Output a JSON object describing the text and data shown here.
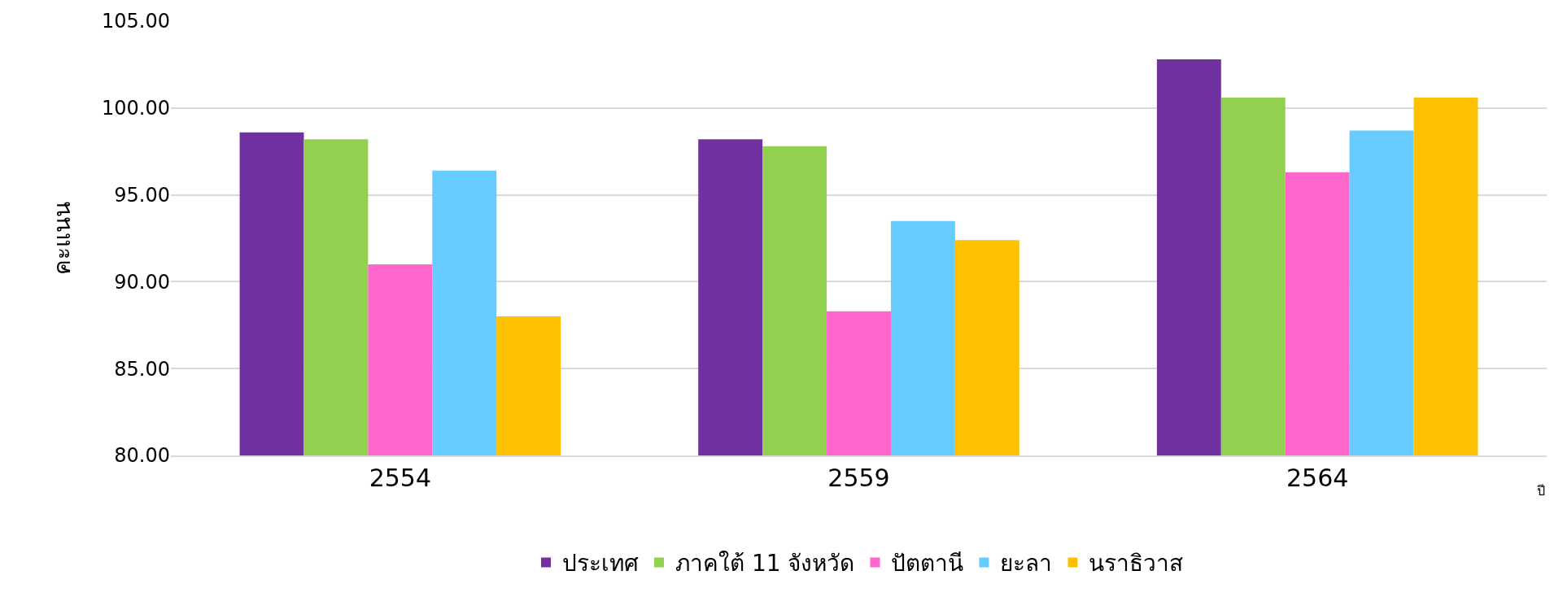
{
  "chart_data": {
    "type": "bar",
    "categories": [
      "2554",
      "2559",
      "2564"
    ],
    "xlabel": "ปี",
    "ylabel": "คะแนน",
    "series": [
      {
        "name": "ประเทศ",
        "color": "#7030a0",
        "values": [
          98.6,
          98.2,
          102.8
        ]
      },
      {
        "name": "ภาคใต้ 11 จังหวัด",
        "color": "#92d050",
        "values": [
          98.2,
          97.8,
          100.6
        ]
      },
      {
        "name": "ปัตตานี",
        "color": "#ff66cc",
        "values": [
          91.0,
          88.3,
          96.3
        ]
      },
      {
        "name": "ยะลา",
        "color": "#66ccff",
        "values": [
          96.4,
          93.5,
          98.7
        ]
      },
      {
        "name": "นราธิวาส",
        "color": "#ffc000",
        "values": [
          88.0,
          92.4,
          100.6
        ]
      }
    ],
    "ylim": [
      80,
      105
    ],
    "yticks": [
      {
        "value": 80,
        "label": "80.00"
      },
      {
        "value": 85,
        "label": "85.00"
      },
      {
        "value": 90,
        "label": "90.00"
      },
      {
        "value": 95,
        "label": "95.00"
      },
      {
        "value": 100,
        "label": "100.00"
      },
      {
        "value": 105,
        "label": "105.00"
      }
    ],
    "grid": "y",
    "legend": "bottom"
  }
}
